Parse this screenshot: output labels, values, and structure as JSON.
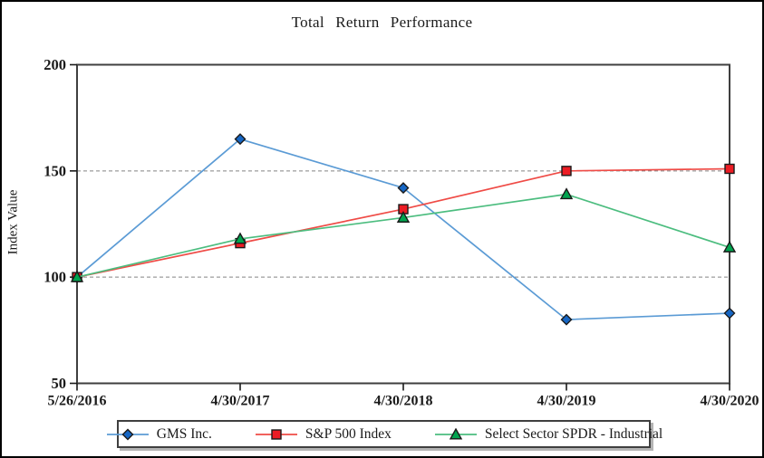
{
  "title": "Total Return Performance",
  "ylabel": "Index Value",
  "chart_data": {
    "type": "line",
    "title": "Total Return Performance",
    "xlabel": "",
    "ylabel": "Index Value",
    "categories": [
      "5/26/2016",
      "4/30/2017",
      "4/30/2018",
      "4/30/2019",
      "4/30/2020"
    ],
    "series": [
      {
        "name": "GMS Inc.",
        "marker": "diamond",
        "line_color": "#5B9BD5",
        "marker_color": "#1666C4",
        "values": [
          100,
          165,
          142,
          80,
          83
        ]
      },
      {
        "name": "S&P 500 Index",
        "marker": "square",
        "line_color": "#EF4B46",
        "marker_color": "#EC1C24",
        "values": [
          100,
          116,
          132,
          150,
          151
        ]
      },
      {
        "name": "Select Sector SPDR - Industrial",
        "marker": "triangle",
        "line_color": "#4CBD7F",
        "marker_color": "#00A44F",
        "values": [
          100,
          118,
          128,
          139,
          114
        ]
      }
    ],
    "ylim": [
      50,
      200
    ],
    "yticks": [
      50,
      100,
      150,
      200
    ],
    "gridlines": [
      100,
      150
    ],
    "grid": "horizontal dashed gridlines at 100 and 150",
    "legend_position": "bottom",
    "axis_color": "#3f3f3f",
    "grid_color": "#848484",
    "tick_label_color": "#1a1a1a"
  }
}
